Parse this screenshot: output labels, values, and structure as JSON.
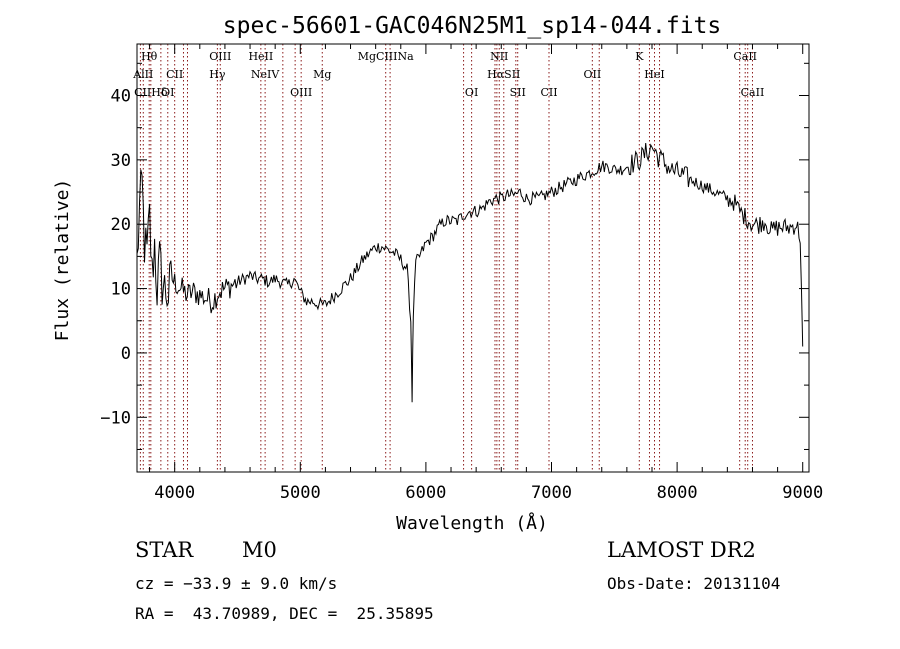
{
  "chart_data": {
    "type": "line",
    "title": "spec-56601-GAC046N25M1_sp14-044.fits",
    "xlabel": "Wavelength (Å)",
    "ylabel": "Flux (relative)",
    "xlim": [
      3700,
      9050
    ],
    "ylim": [
      -18.5,
      48
    ],
    "x_ticks": [
      4000,
      5000,
      6000,
      7000,
      8000,
      9000
    ],
    "y_ticks": [
      -10,
      0,
      10,
      20,
      30,
      40
    ],
    "grid": false,
    "colors": {
      "line": "#000000",
      "marker": "#8b1a1a"
    },
    "spectrum": {
      "name": "",
      "points": [
        [
          3700,
          14
        ],
        [
          3720,
          22
        ],
        [
          3740,
          26
        ],
        [
          3760,
          17
        ],
        [
          3780,
          15
        ],
        [
          3800,
          21
        ],
        [
          3820,
          12
        ],
        [
          3840,
          17
        ],
        [
          3860,
          10
        ],
        [
          3880,
          14
        ],
        [
          3900,
          11
        ],
        [
          3920,
          10
        ],
        [
          3950,
          9
        ],
        [
          3980,
          12
        ],
        [
          4000,
          11
        ],
        [
          4050,
          10
        ],
        [
          4100,
          9
        ],
        [
          4150,
          9.5
        ],
        [
          4200,
          9
        ],
        [
          4250,
          8.5
        ],
        [
          4300,
          8
        ],
        [
          4350,
          9.5
        ],
        [
          4400,
          10
        ],
        [
          4450,
          10.5
        ],
        [
          4500,
          11
        ],
        [
          4550,
          11.5
        ],
        [
          4600,
          12
        ],
        [
          4650,
          11.5
        ],
        [
          4700,
          11.5
        ],
        [
          4750,
          11
        ],
        [
          4800,
          11.5
        ],
        [
          4850,
          11
        ],
        [
          4900,
          10.5
        ],
        [
          4950,
          11.5
        ],
        [
          5000,
          9.5
        ],
        [
          5050,
          8
        ],
        [
          5100,
          8
        ],
        [
          5150,
          7.5
        ],
        [
          5200,
          7.5
        ],
        [
          5250,
          8.5
        ],
        [
          5300,
          9.5
        ],
        [
          5350,
          10.5
        ],
        [
          5400,
          11.5
        ],
        [
          5450,
          13
        ],
        [
          5500,
          14.5
        ],
        [
          5550,
          15.5
        ],
        [
          5600,
          16.5
        ],
        [
          5650,
          16.5
        ],
        [
          5700,
          16
        ],
        [
          5750,
          15.5
        ],
        [
          5800,
          14.5
        ],
        [
          5850,
          13
        ],
        [
          5880,
          5
        ],
        [
          5890,
          -7
        ],
        [
          5900,
          6
        ],
        [
          5920,
          14
        ],
        [
          5950,
          15
        ],
        [
          6000,
          17
        ],
        [
          6050,
          18
        ],
        [
          6100,
          19.5
        ],
        [
          6150,
          20.5
        ],
        [
          6200,
          20.5
        ],
        [
          6250,
          20.5
        ],
        [
          6300,
          21.5
        ],
        [
          6350,
          22
        ],
        [
          6400,
          22
        ],
        [
          6450,
          22.5
        ],
        [
          6500,
          23.5
        ],
        [
          6560,
          24
        ],
        [
          6600,
          24
        ],
        [
          6650,
          24.5
        ],
        [
          6700,
          24.5
        ],
        [
          6750,
          25
        ],
        [
          6800,
          24
        ],
        [
          6850,
          24
        ],
        [
          6900,
          24
        ],
        [
          6950,
          24.5
        ],
        [
          7000,
          25
        ],
        [
          7050,
          25.5
        ],
        [
          7100,
          26
        ],
        [
          7150,
          26.5
        ],
        [
          7200,
          27
        ],
        [
          7250,
          27.5
        ],
        [
          7300,
          28
        ],
        [
          7350,
          28.5
        ],
        [
          7400,
          29
        ],
        [
          7450,
          29
        ],
        [
          7500,
          28.5
        ],
        [
          7550,
          28.5
        ],
        [
          7600,
          29
        ],
        [
          7650,
          29.5
        ],
        [
          7700,
          30
        ],
        [
          7750,
          31
        ],
        [
          7800,
          32
        ],
        [
          7850,
          30.5
        ],
        [
          7900,
          29.5
        ],
        [
          7950,
          28.5
        ],
        [
          8000,
          28
        ],
        [
          8050,
          27.5
        ],
        [
          8100,
          27
        ],
        [
          8150,
          26.5
        ],
        [
          8200,
          26
        ],
        [
          8250,
          25.5
        ],
        [
          8300,
          25
        ],
        [
          8350,
          24.5
        ],
        [
          8400,
          24
        ],
        [
          8450,
          23.5
        ],
        [
          8500,
          22
        ],
        [
          8550,
          21
        ],
        [
          8600,
          20
        ],
        [
          8650,
          20
        ],
        [
          8700,
          20.5
        ],
        [
          8750,
          19
        ],
        [
          8800,
          19.5
        ],
        [
          8850,
          19.5
        ],
        [
          8900,
          19.5
        ],
        [
          8950,
          20
        ],
        [
          8980,
          18
        ],
        [
          9000,
          1
        ]
      ]
    },
    "line_markers": {
      "top": [
        {
          "label": "Hθ",
          "x": 3797
        },
        {
          "label": "OIII",
          "x": 4363
        },
        {
          "label": "HeII",
          "x": 4686
        },
        {
          "label": "MgCIIINa",
          "x": 5680
        },
        {
          "label": "NII",
          "x": 6584
        },
        {
          "label": "K",
          "x": 7699
        },
        {
          "label": "CaII",
          "x": 8542
        }
      ],
      "middle": [
        {
          "label": "AlII",
          "x": 3750
        },
        {
          "label": "CII",
          "x": 4000
        },
        {
          "label": "Hγ",
          "x": 4340
        },
        {
          "label": "NeIV",
          "x": 4720
        },
        {
          "label": "Mg",
          "x": 5175
        },
        {
          "label": "HαSII",
          "x": 6620
        },
        {
          "label": "OII",
          "x": 7325
        },
        {
          "label": "HeI",
          "x": 7820
        }
      ],
      "bottom": [
        {
          "label": "CIIHδ",
          "x": 3810
        },
        {
          "label": "OI",
          "x": 3945
        },
        {
          "label": "OIII",
          "x": 5007
        },
        {
          "label": "OI",
          "x": 6364
        },
        {
          "label": "SII",
          "x": 6731
        },
        {
          "label": "CII",
          "x": 6980
        },
        {
          "label": "CaII",
          "x": 8600
        }
      ],
      "extra_lines": [
        3727,
        3890,
        4070,
        4102,
        4861,
        4959,
        5715,
        6300,
        6550,
        6565,
        6716,
        7380,
        7780,
        7860,
        8498,
        8562
      ]
    }
  },
  "info": {
    "class_label": "STAR",
    "subclass": "M0",
    "survey": "LAMOST DR2",
    "velocity": "cz = −33.9 ± 9.0 km/s",
    "obs_date": "Obs-Date: 20131104",
    "coords": "RA =  43.70989, DEC =  25.35895"
  }
}
